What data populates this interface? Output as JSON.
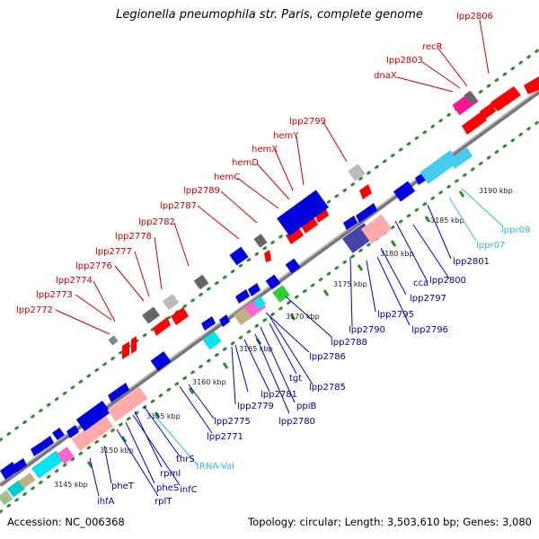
{
  "title": "Legionella pneumophila str. Paris, complete genome",
  "footer": {
    "accession": "Accession: NC_006368",
    "info": "Topology: circular; Length: 3,503,610 bp; Genes: 3,080"
  },
  "ticks": [
    "3145 kbp",
    "3150 kbp",
    "3155 kbp",
    "3160 kbp",
    "3165 kbp",
    "3170 kbp",
    "3175 kbp",
    "3180 kbp",
    "3185 kbp",
    "3190 kbp"
  ],
  "upper_labels": [
    "lpp2772",
    "lpp2773",
    "lpp2774",
    "lpp2776",
    "lpp2777",
    "lpp2778",
    "lpp2782",
    "lpp2787",
    "lpp2789",
    "hemC",
    "hemD",
    "hemX",
    "hemY",
    "lpp2799",
    "dnaX",
    "lpp2803",
    "recR",
    "lpp2806"
  ],
  "lower_labels": [
    "ihfA",
    "pheT",
    "rplT",
    "pheS",
    "infC",
    "rpmI",
    "thrS",
    "tRNA-Val",
    "lpp2771",
    "lpp2775",
    "lpp2779",
    "lpp2781",
    "lpp2780",
    "ppiB",
    "tgt",
    "lpp2786",
    "lpp2785",
    "lpp2788",
    "lpp2790",
    "lpp2795",
    "lpp2796",
    "lpp2797",
    "cca",
    "lpp2800",
    "lpp2801",
    "lppr07",
    "lppr08"
  ],
  "colors": {
    "backbone": "#8a8a8a",
    "dots": "#2e8b2e",
    "forward_gene": "#ff0000",
    "reverse_gene": "#0000dd",
    "upper_label": "#cc0000",
    "lower_label": "#0000aa",
    "rna_label": "#33bbcc"
  }
}
